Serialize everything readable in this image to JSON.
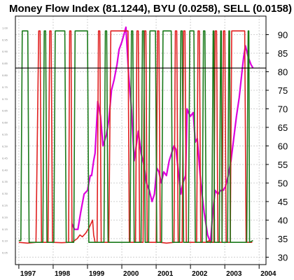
{
  "chart_data": {
    "type": "line",
    "title": "Money Flow Index (81.1244), BYU (0.0258), SELL (0.0158)",
    "xlabel": "",
    "ylabel": "",
    "y_right": {
      "ticks": [
        30,
        35,
        40,
        45,
        50,
        55,
        60,
        65,
        70,
        75,
        80,
        85,
        90
      ],
      "range": [
        28,
        95
      ]
    },
    "y_left": {
      "ticks": [
        0.05,
        0.1,
        0.15,
        0.2,
        0.25,
        0.3,
        0.35,
        0.4,
        0.45,
        0.5,
        0.55,
        0.6,
        0.65,
        0.7,
        0.75,
        0.8,
        0.85,
        0.9,
        0.95,
        1.0
      ],
      "labels": [
        "0.05",
        "0.10",
        "0.15",
        "0.20",
        "0.25",
        "0.30",
        "0.35",
        "0.40",
        "0.45",
        "0.50",
        "0.55",
        "0.60",
        "0.65",
        "0.70",
        "0.75",
        "0.80",
        "0.85",
        "0.90",
        "0.95",
        "1.00"
      ]
    },
    "x_axis": {
      "ticks": [
        {
          "label": "1997",
          "x": 1997.0
        },
        {
          "label": "1998",
          "x": 1998.0
        },
        {
          "label": "1999",
          "x": 1999.0
        },
        {
          "label": "2000",
          "x": 2000.0
        },
        {
          "label": "2001",
          "x": 2001.0
        },
        {
          "label": "2002",
          "x": 2002.0
        },
        {
          "label": "2003",
          "x": 2003.0
        },
        {
          "label": "2004",
          "x": 2004.0
        }
      ],
      "range": [
        1996.9,
        2004.2
      ]
    },
    "grid": true,
    "reference_line": {
      "y": 81,
      "color": "#000000"
    },
    "series": [
      {
        "color": "#dd00dd",
        "points": [
          [
            1998.55,
            39
          ],
          [
            1998.62,
            37.5
          ],
          [
            1998.72,
            37.5
          ],
          [
            1998.8,
            42
          ],
          [
            1998.9,
            47
          ],
          [
            1999.0,
            48
          ],
          [
            1999.08,
            52
          ],
          [
            1999.12,
            52
          ],
          [
            1999.18,
            56
          ],
          [
            1999.22,
            58
          ],
          [
            1999.3,
            72
          ],
          [
            1999.38,
            68
          ],
          [
            1999.45,
            60
          ],
          [
            1999.55,
            63
          ],
          [
            1999.62,
            67
          ],
          [
            1999.7,
            75
          ],
          [
            1999.78,
            78
          ],
          [
            1999.86,
            82
          ],
          [
            1999.92,
            86
          ],
          [
            2000.0,
            88
          ],
          [
            2000.06,
            90
          ],
          [
            2000.12,
            92
          ],
          [
            2000.2,
            79
          ],
          [
            2000.28,
            70
          ],
          [
            2000.36,
            56
          ],
          [
            2000.42,
            60
          ],
          [
            2000.48,
            64
          ],
          [
            2000.56,
            58
          ],
          [
            2000.64,
            55
          ],
          [
            2000.72,
            50
          ],
          [
            2000.8,
            48
          ],
          [
            2000.88,
            45
          ],
          [
            2000.95,
            47
          ],
          [
            2001.02,
            54
          ],
          [
            2001.08,
            53
          ],
          [
            2001.15,
            50
          ],
          [
            2001.22,
            53
          ],
          [
            2001.3,
            52
          ],
          [
            2001.38,
            56
          ],
          [
            2001.45,
            58
          ],
          [
            2001.52,
            60
          ],
          [
            2001.58,
            59
          ],
          [
            2001.65,
            53
          ],
          [
            2001.72,
            47
          ],
          [
            2001.78,
            50
          ],
          [
            2001.86,
            52
          ],
          [
            2001.9,
            70
          ],
          [
            2001.94,
            69
          ],
          [
            2002.0,
            68
          ],
          [
            2002.08,
            69
          ],
          [
            2002.14,
            61
          ],
          [
            2002.2,
            62
          ],
          [
            2002.3,
            50
          ],
          [
            2002.4,
            42
          ],
          [
            2002.5,
            36
          ],
          [
            2002.58,
            34
          ],
          [
            2002.65,
            42
          ],
          [
            2002.72,
            48
          ],
          [
            2002.8,
            47
          ],
          [
            2002.88,
            48
          ],
          [
            2002.95,
            48
          ],
          [
            2003.02,
            49
          ],
          [
            2003.1,
            52
          ],
          [
            2003.18,
            56
          ],
          [
            2003.26,
            62
          ],
          [
            2003.34,
            68
          ],
          [
            2003.42,
            73
          ],
          [
            2003.5,
            80
          ],
          [
            2003.55,
            84
          ],
          [
            2003.6,
            87
          ],
          [
            2003.68,
            84
          ],
          [
            2003.76,
            82
          ],
          [
            2003.82,
            81
          ]
        ]
      },
      {
        "color": "#e02020",
        "points": [
          [
            1997.0,
            34
          ],
          [
            1997.25,
            33.8
          ],
          [
            1997.5,
            34
          ],
          [
            1997.58,
            91
          ],
          [
            1997.62,
            91
          ],
          [
            1997.66,
            34
          ],
          [
            1997.85,
            34
          ],
          [
            1997.9,
            91
          ],
          [
            1997.94,
            91
          ],
          [
            1997.98,
            34
          ],
          [
            1998.25,
            33.9
          ],
          [
            1998.45,
            34
          ],
          [
            1998.48,
            91
          ],
          [
            1998.52,
            91
          ],
          [
            1998.55,
            34
          ],
          [
            1998.7,
            35
          ],
          [
            1998.78,
            36
          ],
          [
            1998.85,
            35.5
          ],
          [
            1998.95,
            36.5
          ],
          [
            1999.05,
            38
          ],
          [
            1999.15,
            40
          ],
          [
            1999.18,
            36
          ],
          [
            1999.22,
            34
          ],
          [
            1999.28,
            34
          ],
          [
            1999.32,
            91
          ],
          [
            1999.36,
            91
          ],
          [
            1999.4,
            34
          ],
          [
            1999.5,
            34
          ],
          [
            1999.62,
            34
          ],
          [
            1999.68,
            91
          ],
          [
            2000.18,
            91
          ],
          [
            2000.22,
            34
          ],
          [
            2000.4,
            34
          ],
          [
            2000.44,
            91
          ],
          [
            2000.48,
            91
          ],
          [
            2000.52,
            34
          ],
          [
            2000.62,
            34
          ],
          [
            2000.66,
            91
          ],
          [
            2000.7,
            91
          ],
          [
            2000.74,
            34
          ],
          [
            2001.0,
            34
          ],
          [
            2001.04,
            91
          ],
          [
            2001.08,
            91
          ],
          [
            2001.12,
            34
          ],
          [
            2001.3,
            33.8
          ],
          [
            2001.52,
            34
          ],
          [
            2001.56,
            91
          ],
          [
            2001.6,
            91
          ],
          [
            2001.64,
            34
          ],
          [
            2001.76,
            34
          ],
          [
            2001.8,
            91
          ],
          [
            2001.84,
            91
          ],
          [
            2001.88,
            34
          ],
          [
            2002.18,
            34
          ],
          [
            2002.22,
            91
          ],
          [
            2002.26,
            91
          ],
          [
            2002.3,
            34
          ],
          [
            2002.44,
            34
          ],
          [
            2002.56,
            34.5
          ],
          [
            2002.6,
            34
          ],
          [
            2002.68,
            34
          ],
          [
            2002.72,
            91
          ],
          [
            2002.76,
            91
          ],
          [
            2002.8,
            34
          ],
          [
            2002.92,
            34
          ],
          [
            2002.96,
            91
          ],
          [
            2003.0,
            91
          ],
          [
            2003.04,
            34
          ],
          [
            2003.16,
            34
          ],
          [
            2003.2,
            91
          ],
          [
            2003.58,
            91
          ],
          [
            2003.62,
            34
          ],
          [
            2003.8,
            34
          ]
        ]
      },
      {
        "color": "#1a7a1a",
        "points": [
          [
            1997.0,
            34.5
          ],
          [
            1997.06,
            34.5
          ],
          [
            1997.1,
            91
          ],
          [
            1997.26,
            91
          ],
          [
            1997.3,
            34
          ],
          [
            1997.7,
            34
          ],
          [
            1997.74,
            91
          ],
          [
            1997.78,
            91
          ],
          [
            1997.82,
            34
          ],
          [
            1998.02,
            34
          ],
          [
            1998.06,
            91
          ],
          [
            1998.34,
            91
          ],
          [
            1998.38,
            34
          ],
          [
            1998.6,
            34
          ],
          [
            1998.64,
            91
          ],
          [
            1999.0,
            91
          ],
          [
            1999.04,
            34
          ],
          [
            1999.48,
            34
          ],
          [
            1999.52,
            91
          ],
          [
            1999.56,
            91
          ],
          [
            1999.6,
            34
          ],
          [
            2000.24,
            34
          ],
          [
            2000.28,
            91
          ],
          [
            2000.32,
            91
          ],
          [
            2000.36,
            34
          ],
          [
            2000.56,
            34
          ],
          [
            2000.6,
            91
          ],
          [
            2000.64,
            91
          ],
          [
            2000.68,
            34
          ],
          [
            2000.78,
            34
          ],
          [
            2000.82,
            91
          ],
          [
            2000.98,
            91
          ],
          [
            2001.02,
            34
          ],
          [
            2001.16,
            34
          ],
          [
            2001.2,
            91
          ],
          [
            2001.44,
            91
          ],
          [
            2001.48,
            34
          ],
          [
            2001.68,
            34
          ],
          [
            2001.72,
            91
          ],
          [
            2001.76,
            91
          ],
          [
            2001.8,
            34
          ],
          [
            2001.94,
            34
          ],
          [
            2001.98,
            91
          ],
          [
            2002.1,
            91
          ],
          [
            2002.14,
            34
          ],
          [
            2002.34,
            34
          ],
          [
            2002.38,
            91
          ],
          [
            2002.42,
            91
          ],
          [
            2002.46,
            34
          ],
          [
            2002.62,
            34
          ],
          [
            2002.66,
            91
          ],
          [
            2002.68,
            91
          ],
          [
            2002.7,
            34
          ],
          [
            2002.84,
            34
          ],
          [
            2002.88,
            91
          ],
          [
            2002.9,
            91
          ],
          [
            2002.92,
            34
          ],
          [
            2003.08,
            34
          ],
          [
            2003.12,
            91
          ],
          [
            2003.14,
            91
          ],
          [
            2003.16,
            34
          ],
          [
            2003.64,
            34
          ],
          [
            2003.68,
            91
          ],
          [
            2003.7,
            91
          ],
          [
            2003.72,
            34
          ],
          [
            2003.82,
            34.5
          ]
        ]
      }
    ]
  }
}
